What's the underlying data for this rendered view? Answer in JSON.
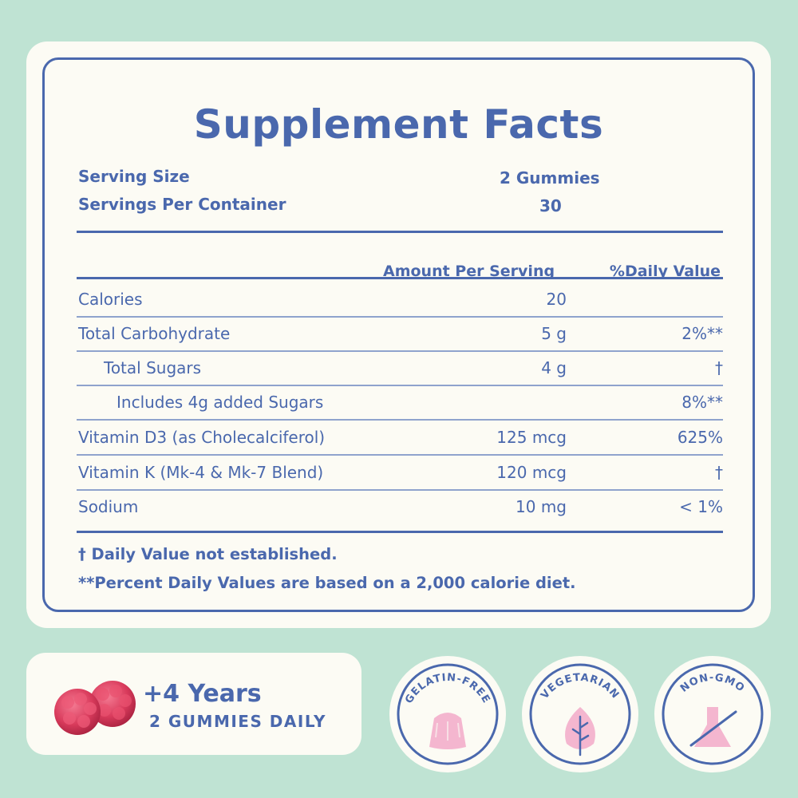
{
  "panel": {
    "title": "Supplement Facts",
    "serving_size_label": "Serving Size",
    "serving_size_value": "2 Gummies",
    "servings_label": "Servings Per Container",
    "servings_value": "30",
    "col_amount": "Amount Per Serving",
    "col_dv": "%Daily Value",
    "rows": [
      {
        "label": "Calories",
        "amount": "20",
        "dv": ""
      },
      {
        "label": "Total Carbohydrate",
        "amount": "5 g",
        "dv": "2%**"
      },
      {
        "label": "Total Sugars",
        "amount": "4 g",
        "dv": "†"
      },
      {
        "label": "Includes 4g added Sugars",
        "amount": "",
        "dv": "8%**"
      },
      {
        "label": "Vitamin D3  (as Cholecalciferol)",
        "amount": "125 mcg",
        "dv": "625%"
      },
      {
        "label": "Vitamin K  (Mk-4 & Mk-7 Blend)",
        "amount": "120 mcg",
        "dv": "†"
      },
      {
        "label": "Sodium",
        "amount": "10 mg",
        "dv": "< 1%"
      }
    ],
    "footnote_1": "† Daily Value not established.",
    "footnote_2": "**Percent Daily Values are based on a 2,000 calorie diet."
  },
  "badge": {
    "age": "+4 Years",
    "dosage": "2 GUMMIES DAILY"
  },
  "seals": [
    {
      "label": "GELATIN-FREE",
      "icon": "jelly-icon"
    },
    {
      "label": "VEGETARIAN",
      "icon": "leaf-icon"
    },
    {
      "label": "NON-GMO",
      "icon": "flask-icon"
    }
  ],
  "colors": {
    "background": "#bfe3d3",
    "card": "#fcfbf4",
    "accent_blue": "#4a68ad",
    "pink": "#f4b6cf",
    "gummy_red": "#d73a5a"
  }
}
